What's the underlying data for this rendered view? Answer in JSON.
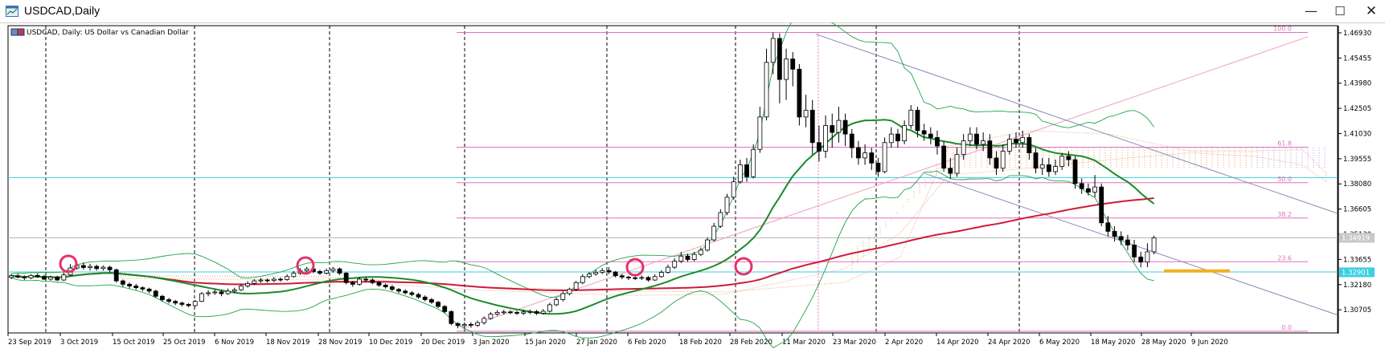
{
  "window": {
    "title": "USDCAD,Daily",
    "buttons": {
      "minimize": "—",
      "maximize": "☐",
      "close": "✕"
    }
  },
  "chart": {
    "header_label": "USDCAD, Daily:  US Dollar vs Canadian Dollar",
    "colors": {
      "candle_up": "#ffffff",
      "candle_down": "#000000",
      "sma_fast": "#1a8a2a",
      "sma_slow": "#d01a3a",
      "bollinger": "#22a34a",
      "fibo": "#e070c0",
      "hline": "#3ccfe0",
      "channel": "#8a8ab8",
      "trend_pink": "#f0a0b8",
      "ichimoku_a": "#e8a070",
      "ichimoku_b": "#b0a0d0",
      "circle": "#e8306a",
      "support_bar": "#f0b020"
    }
  },
  "chart_data": {
    "type": "candlestick",
    "symbol": "USDCAD",
    "timeframe": "Daily",
    "description": "US Dollar vs Canadian Dollar",
    "ylim": [
      1.2935,
      1.4735
    ],
    "y_ticks": [
      "1.46930",
      "1.45455",
      "1.43980",
      "1.42505",
      "1.41030",
      "1.39555",
      "1.38080",
      "1.36605",
      "1.35130",
      "1.33655",
      "1.32180",
      "1.30705"
    ],
    "x_ticks": [
      "23 Sep 2019",
      "3 Oct 2019",
      "15 Oct 2019",
      "25 Oct 2019",
      "6 Nov 2019",
      "18 Nov 2019",
      "28 Nov 2019",
      "10 Dec 2019",
      "20 Dec 2019",
      "3 Jan 2020",
      "15 Jan 2020",
      "27 Jan 2020",
      "6 Feb 2020",
      "18 Feb 2020",
      "28 Feb 2020",
      "11 Mar 2020",
      "23 Mar 2020",
      "2 Apr 2020",
      "14 Apr 2020",
      "24 Apr 2020",
      "6 May 2020",
      "18 May 2020",
      "28 May 2020",
      "9 Jun 2020"
    ],
    "price_badges": [
      {
        "label": "1.34919",
        "value": 1.34919,
        "style": "bid"
      },
      {
        "label": "1.32901",
        "value": 1.32901,
        "style": "hline"
      }
    ],
    "horizontal_lines": [
      1.3845,
      1.3292
    ],
    "fibonacci": [
      {
        "label": "100.0",
        "value": 1.4695
      },
      {
        "label": "61.8",
        "value": 1.4023
      },
      {
        "label": "50.0",
        "value": 1.3815
      },
      {
        "label": "38.2",
        "value": 1.3608
      },
      {
        "label": "23.6",
        "value": 1.3352
      },
      {
        "label": "0.0",
        "value": 1.2945
      }
    ],
    "candles": [
      [
        1.326,
        1.327,
        1.325,
        1.328
      ],
      [
        1.327,
        1.3262,
        1.3255,
        1.3282
      ],
      [
        1.3262,
        1.3258,
        1.3245,
        1.3272
      ],
      [
        1.3258,
        1.3272,
        1.325,
        1.328
      ],
      [
        1.3272,
        1.3265,
        1.3258,
        1.3283
      ],
      [
        1.3265,
        1.325,
        1.3245,
        1.3275
      ],
      [
        1.325,
        1.3262,
        1.3242,
        1.327
      ],
      [
        1.3262,
        1.3245,
        1.3238,
        1.327
      ],
      [
        1.3245,
        1.3275,
        1.324,
        1.329
      ],
      [
        1.3275,
        1.3315,
        1.3268,
        1.3338
      ],
      [
        1.3315,
        1.333,
        1.3305,
        1.3345
      ],
      [
        1.333,
        1.3318,
        1.3305,
        1.3348
      ],
      [
        1.3318,
        1.3325,
        1.33,
        1.334
      ],
      [
        1.3325,
        1.3312,
        1.33,
        1.3335
      ],
      [
        1.3312,
        1.332,
        1.33,
        1.333
      ],
      [
        1.332,
        1.3305,
        1.329,
        1.3328
      ],
      [
        1.3305,
        1.324,
        1.323,
        1.3312
      ],
      [
        1.324,
        1.322,
        1.3205,
        1.3248
      ],
      [
        1.322,
        1.321,
        1.3195,
        1.3232
      ],
      [
        1.321,
        1.32,
        1.3188,
        1.3222
      ],
      [
        1.32,
        1.3192,
        1.318,
        1.3208
      ],
      [
        1.3192,
        1.318,
        1.3168,
        1.32
      ],
      [
        1.318,
        1.315,
        1.314,
        1.3188
      ],
      [
        1.315,
        1.313,
        1.3118,
        1.3158
      ],
      [
        1.313,
        1.312,
        1.3108,
        1.314
      ],
      [
        1.312,
        1.311,
        1.3098,
        1.3128
      ],
      [
        1.311,
        1.3102,
        1.309,
        1.3118
      ],
      [
        1.3102,
        1.3095,
        1.3085,
        1.311
      ],
      [
        1.3095,
        1.312,
        1.3088,
        1.3128
      ],
      [
        1.312,
        1.3165,
        1.3115,
        1.3175
      ],
      [
        1.3165,
        1.317,
        1.315,
        1.3185
      ],
      [
        1.317,
        1.3175,
        1.3158,
        1.319
      ],
      [
        1.3175,
        1.3165,
        1.315,
        1.3188
      ],
      [
        1.3165,
        1.318,
        1.3158,
        1.3195
      ],
      [
        1.318,
        1.3188,
        1.317,
        1.32
      ],
      [
        1.3188,
        1.321,
        1.318,
        1.3222
      ],
      [
        1.321,
        1.3225,
        1.32,
        1.3238
      ],
      [
        1.3225,
        1.324,
        1.3215,
        1.325
      ],
      [
        1.324,
        1.3245,
        1.3228,
        1.3258
      ],
      [
        1.3245,
        1.3242,
        1.323,
        1.3255
      ],
      [
        1.3242,
        1.325,
        1.3232,
        1.3262
      ],
      [
        1.325,
        1.3248,
        1.3235,
        1.326
      ],
      [
        1.3248,
        1.3265,
        1.324,
        1.3278
      ],
      [
        1.3265,
        1.3285,
        1.3258,
        1.3298
      ],
      [
        1.3285,
        1.33,
        1.3275,
        1.3315
      ],
      [
        1.33,
        1.331,
        1.329,
        1.3322
      ],
      [
        1.331,
        1.3295,
        1.3285,
        1.3318
      ],
      [
        1.3295,
        1.3285,
        1.3275,
        1.3305
      ],
      [
        1.3285,
        1.33,
        1.3278,
        1.3312
      ],
      [
        1.33,
        1.331,
        1.3288,
        1.3322
      ],
      [
        1.331,
        1.3285,
        1.3275,
        1.3318
      ],
      [
        1.3285,
        1.323,
        1.322,
        1.3292
      ],
      [
        1.323,
        1.322,
        1.3205,
        1.324
      ],
      [
        1.322,
        1.325,
        1.3212,
        1.3262
      ],
      [
        1.325,
        1.3245,
        1.3232,
        1.326
      ],
      [
        1.3245,
        1.323,
        1.322,
        1.3255
      ],
      [
        1.323,
        1.3215,
        1.3205,
        1.324
      ],
      [
        1.3215,
        1.3205,
        1.3195,
        1.3225
      ],
      [
        1.3205,
        1.319,
        1.318,
        1.3215
      ],
      [
        1.319,
        1.318,
        1.3168,
        1.3198
      ],
      [
        1.318,
        1.317,
        1.316,
        1.319
      ],
      [
        1.317,
        1.316,
        1.315,
        1.318
      ],
      [
        1.316,
        1.3145,
        1.3135,
        1.317
      ],
      [
        1.3145,
        1.313,
        1.312,
        1.3155
      ],
      [
        1.313,
        1.3115,
        1.3105,
        1.314
      ],
      [
        1.3115,
        1.309,
        1.308,
        1.3122
      ],
      [
        1.309,
        1.306,
        1.305,
        1.3098
      ],
      [
        1.306,
        1.299,
        1.298,
        1.3068
      ],
      [
        1.299,
        1.2978,
        1.2962,
        1.2998
      ],
      [
        1.2978,
        1.2985,
        1.2962,
        1.2998
      ],
      [
        1.2985,
        1.298,
        1.2965,
        1.2998
      ],
      [
        1.298,
        1.2995,
        1.297,
        1.3008
      ],
      [
        1.2995,
        1.302,
        1.2985,
        1.3032
      ],
      [
        1.302,
        1.3045,
        1.3012,
        1.3058
      ],
      [
        1.3045,
        1.3055,
        1.3035,
        1.3068
      ],
      [
        1.3055,
        1.3058,
        1.3042,
        1.307
      ],
      [
        1.3058,
        1.3055,
        1.3045,
        1.3068
      ],
      [
        1.3055,
        1.305,
        1.304,
        1.3065
      ],
      [
        1.305,
        1.3058,
        1.304,
        1.3072
      ],
      [
        1.3058,
        1.306,
        1.3045,
        1.3072
      ],
      [
        1.306,
        1.305,
        1.304,
        1.307
      ],
      [
        1.305,
        1.3062,
        1.3042,
        1.3075
      ],
      [
        1.3062,
        1.31,
        1.3055,
        1.3112
      ],
      [
        1.31,
        1.313,
        1.3092,
        1.3142
      ],
      [
        1.313,
        1.3165,
        1.312,
        1.3178
      ],
      [
        1.3165,
        1.319,
        1.3155,
        1.32
      ],
      [
        1.319,
        1.323,
        1.318,
        1.324
      ],
      [
        1.323,
        1.3265,
        1.322,
        1.3278
      ],
      [
        1.3265,
        1.328,
        1.3255,
        1.3292
      ],
      [
        1.328,
        1.329,
        1.327,
        1.3305
      ],
      [
        1.329,
        1.33,
        1.328,
        1.3315
      ],
      [
        1.33,
        1.3292,
        1.328,
        1.332
      ],
      [
        1.3292,
        1.327,
        1.326,
        1.3298
      ],
      [
        1.327,
        1.3262,
        1.325,
        1.328
      ],
      [
        1.3262,
        1.3258,
        1.3245,
        1.327
      ],
      [
        1.3258,
        1.3255,
        1.3245,
        1.3268
      ],
      [
        1.3255,
        1.326,
        1.3245,
        1.3272
      ],
      [
        1.326,
        1.3245,
        1.3235,
        1.3268
      ],
      [
        1.3245,
        1.3265,
        1.324,
        1.3278
      ],
      [
        1.3265,
        1.329,
        1.3258,
        1.3302
      ],
      [
        1.329,
        1.332,
        1.3282,
        1.3335
      ],
      [
        1.332,
        1.3355,
        1.331,
        1.3372
      ],
      [
        1.3355,
        1.3385,
        1.3345,
        1.341
      ],
      [
        1.3385,
        1.3365,
        1.3352,
        1.34
      ],
      [
        1.3365,
        1.3395,
        1.3355,
        1.341
      ],
      [
        1.3395,
        1.342,
        1.3385,
        1.3435
      ],
      [
        1.342,
        1.348,
        1.3412,
        1.3495
      ],
      [
        1.348,
        1.356,
        1.347,
        1.358
      ],
      [
        1.356,
        1.364,
        1.355,
        1.366
      ],
      [
        1.364,
        1.373,
        1.3625,
        1.375
      ],
      [
        1.373,
        1.382,
        1.3715,
        1.385
      ],
      [
        1.382,
        1.392,
        1.381,
        1.395
      ],
      [
        1.392,
        1.385,
        1.382,
        1.396
      ],
      [
        1.385,
        1.401,
        1.384,
        1.404
      ],
      [
        1.401,
        1.42,
        1.399,
        1.426
      ],
      [
        1.42,
        1.452,
        1.418,
        1.46
      ],
      [
        1.452,
        1.466,
        1.445,
        1.4695
      ],
      [
        1.466,
        1.442,
        1.428,
        1.469
      ],
      [
        1.442,
        1.454,
        1.43,
        1.46
      ],
      [
        1.454,
        1.448,
        1.438,
        1.458
      ],
      [
        1.448,
        1.42,
        1.415,
        1.451
      ],
      [
        1.42,
        1.424,
        1.414,
        1.433
      ],
      [
        1.424,
        1.405,
        1.398,
        1.43
      ],
      [
        1.405,
        1.4,
        1.394,
        1.415
      ],
      [
        1.4,
        1.415,
        1.396,
        1.421
      ],
      [
        1.415,
        1.411,
        1.402,
        1.422
      ],
      [
        1.411,
        1.418,
        1.405,
        1.426
      ],
      [
        1.418,
        1.41,
        1.403,
        1.422
      ],
      [
        1.41,
        1.402,
        1.396,
        1.413
      ],
      [
        1.402,
        1.396,
        1.392,
        1.406
      ],
      [
        1.396,
        1.399,
        1.392,
        1.404
      ],
      [
        1.399,
        1.393,
        1.389,
        1.402
      ],
      [
        1.393,
        1.388,
        1.385,
        1.396
      ],
      [
        1.388,
        1.405,
        1.387,
        1.408
      ],
      [
        1.405,
        1.41,
        1.402,
        1.414
      ],
      [
        1.41,
        1.406,
        1.402,
        1.413
      ],
      [
        1.406,
        1.415,
        1.404,
        1.418
      ],
      [
        1.415,
        1.424,
        1.413,
        1.427
      ],
      [
        1.424,
        1.412,
        1.408,
        1.426
      ],
      [
        1.412,
        1.41,
        1.406,
        1.416
      ],
      [
        1.41,
        1.408,
        1.404,
        1.414
      ],
      [
        1.408,
        1.403,
        1.398,
        1.412
      ],
      [
        1.403,
        1.39,
        1.388,
        1.406
      ],
      [
        1.39,
        1.387,
        1.384,
        1.396
      ],
      [
        1.387,
        1.398,
        1.385,
        1.402
      ],
      [
        1.398,
        1.406,
        1.395,
        1.41
      ],
      [
        1.406,
        1.41,
        1.403,
        1.414
      ],
      [
        1.41,
        1.404,
        1.401,
        1.414
      ],
      [
        1.404,
        1.406,
        1.4,
        1.411
      ],
      [
        1.406,
        1.396,
        1.392,
        1.41
      ],
      [
        1.396,
        1.39,
        1.386,
        1.4
      ],
      [
        1.39,
        1.4,
        1.388,
        1.404
      ],
      [
        1.4,
        1.407,
        1.398,
        1.41
      ],
      [
        1.407,
        1.405,
        1.402,
        1.411
      ],
      [
        1.405,
        1.408,
        1.402,
        1.412
      ],
      [
        1.408,
        1.399,
        1.395,
        1.41
      ],
      [
        1.399,
        1.39,
        1.387,
        1.402
      ],
      [
        1.39,
        1.392,
        1.386,
        1.396
      ],
      [
        1.392,
        1.388,
        1.385,
        1.396
      ],
      [
        1.388,
        1.391,
        1.386,
        1.395
      ],
      [
        1.391,
        1.397,
        1.389,
        1.399
      ],
      [
        1.397,
        1.395,
        1.391,
        1.4
      ],
      [
        1.395,
        1.381,
        1.378,
        1.397
      ],
      [
        1.381,
        1.378,
        1.375,
        1.384
      ],
      [
        1.378,
        1.376,
        1.374,
        1.381
      ],
      [
        1.376,
        1.379,
        1.373,
        1.386
      ],
      [
        1.379,
        1.358,
        1.356,
        1.381
      ],
      [
        1.358,
        1.353,
        1.35,
        1.362
      ],
      [
        1.353,
        1.35,
        1.347,
        1.356
      ],
      [
        1.35,
        1.348,
        1.345,
        1.353
      ],
      [
        1.348,
        1.345,
        1.342,
        1.351
      ],
      [
        1.345,
        1.338,
        1.335,
        1.348
      ],
      [
        1.338,
        1.335,
        1.332,
        1.341
      ],
      [
        1.335,
        1.341,
        1.332,
        1.346
      ],
      [
        1.341,
        1.3492,
        1.3395,
        1.3505
      ]
    ]
  }
}
